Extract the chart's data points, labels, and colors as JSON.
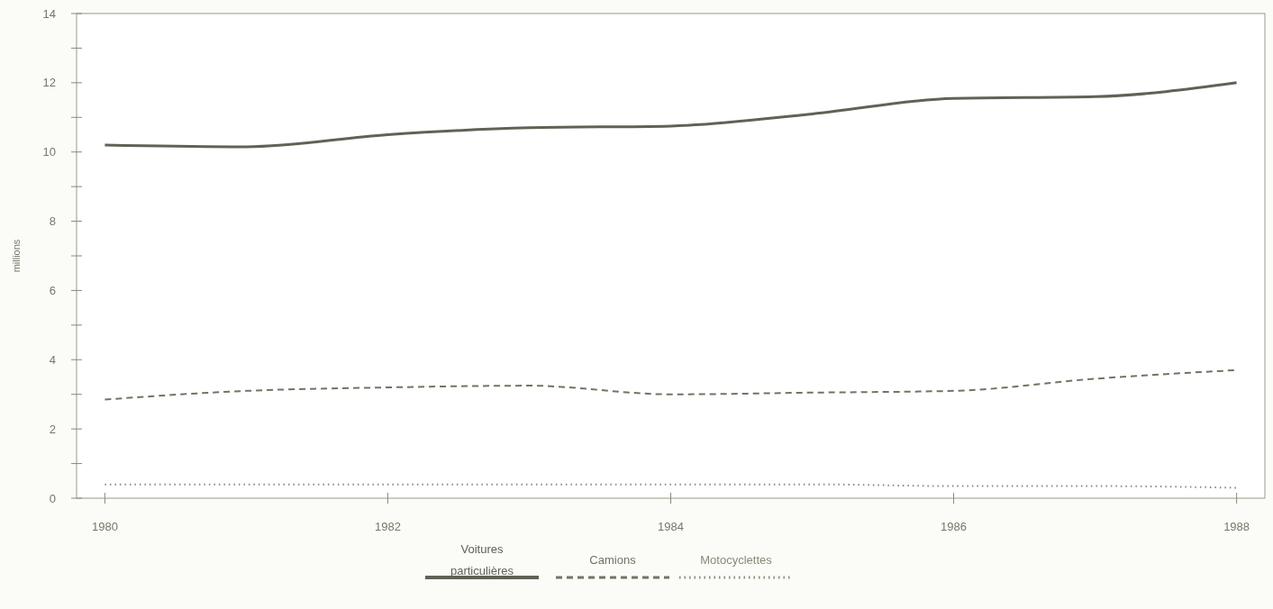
{
  "chart_data": {
    "type": "line",
    "ylabel": "millions",
    "x": [
      1980,
      1981,
      1982,
      1983,
      1984,
      1985,
      1986,
      1987,
      1988
    ],
    "series": [
      {
        "name": "Voitures particulières",
        "color": "#5f6355",
        "line_style": "solid",
        "values": [
          10.2,
          10.15,
          10.5,
          10.7,
          10.75,
          11.1,
          11.55,
          11.6,
          12.0
        ]
      },
      {
        "name": "Camions",
        "color": "#737363",
        "line_style": "dashed",
        "values": [
          2.85,
          3.1,
          3.2,
          3.25,
          3.0,
          3.05,
          3.1,
          3.45,
          3.7
        ]
      },
      {
        "name": "Motocyclettes",
        "color": "#8a8a78",
        "line_style": "dotted",
        "values": [
          0.4,
          0.4,
          0.4,
          0.4,
          0.4,
          0.4,
          0.35,
          0.35,
          0.3
        ]
      }
    ],
    "xlim": [
      1979.8,
      1988.2
    ],
    "xticks": [
      1980,
      1982,
      1984,
      1986,
      1988
    ],
    "ylim": [
      0,
      14
    ],
    "yticks": [
      0,
      {
        "value": 1,
        "label": null
      },
      2,
      {
        "value": 3,
        "label": null
      },
      4,
      {
        "value": 5,
        "label": null
      },
      6,
      {
        "value": 7,
        "label": null
      },
      8,
      {
        "value": 9,
        "label": null
      },
      10,
      {
        "value": 11,
        "label": null
      },
      12,
      {
        "value": 13,
        "label": null
      },
      14
    ],
    "grid": false,
    "legend": "bottom",
    "marker": "none"
  }
}
